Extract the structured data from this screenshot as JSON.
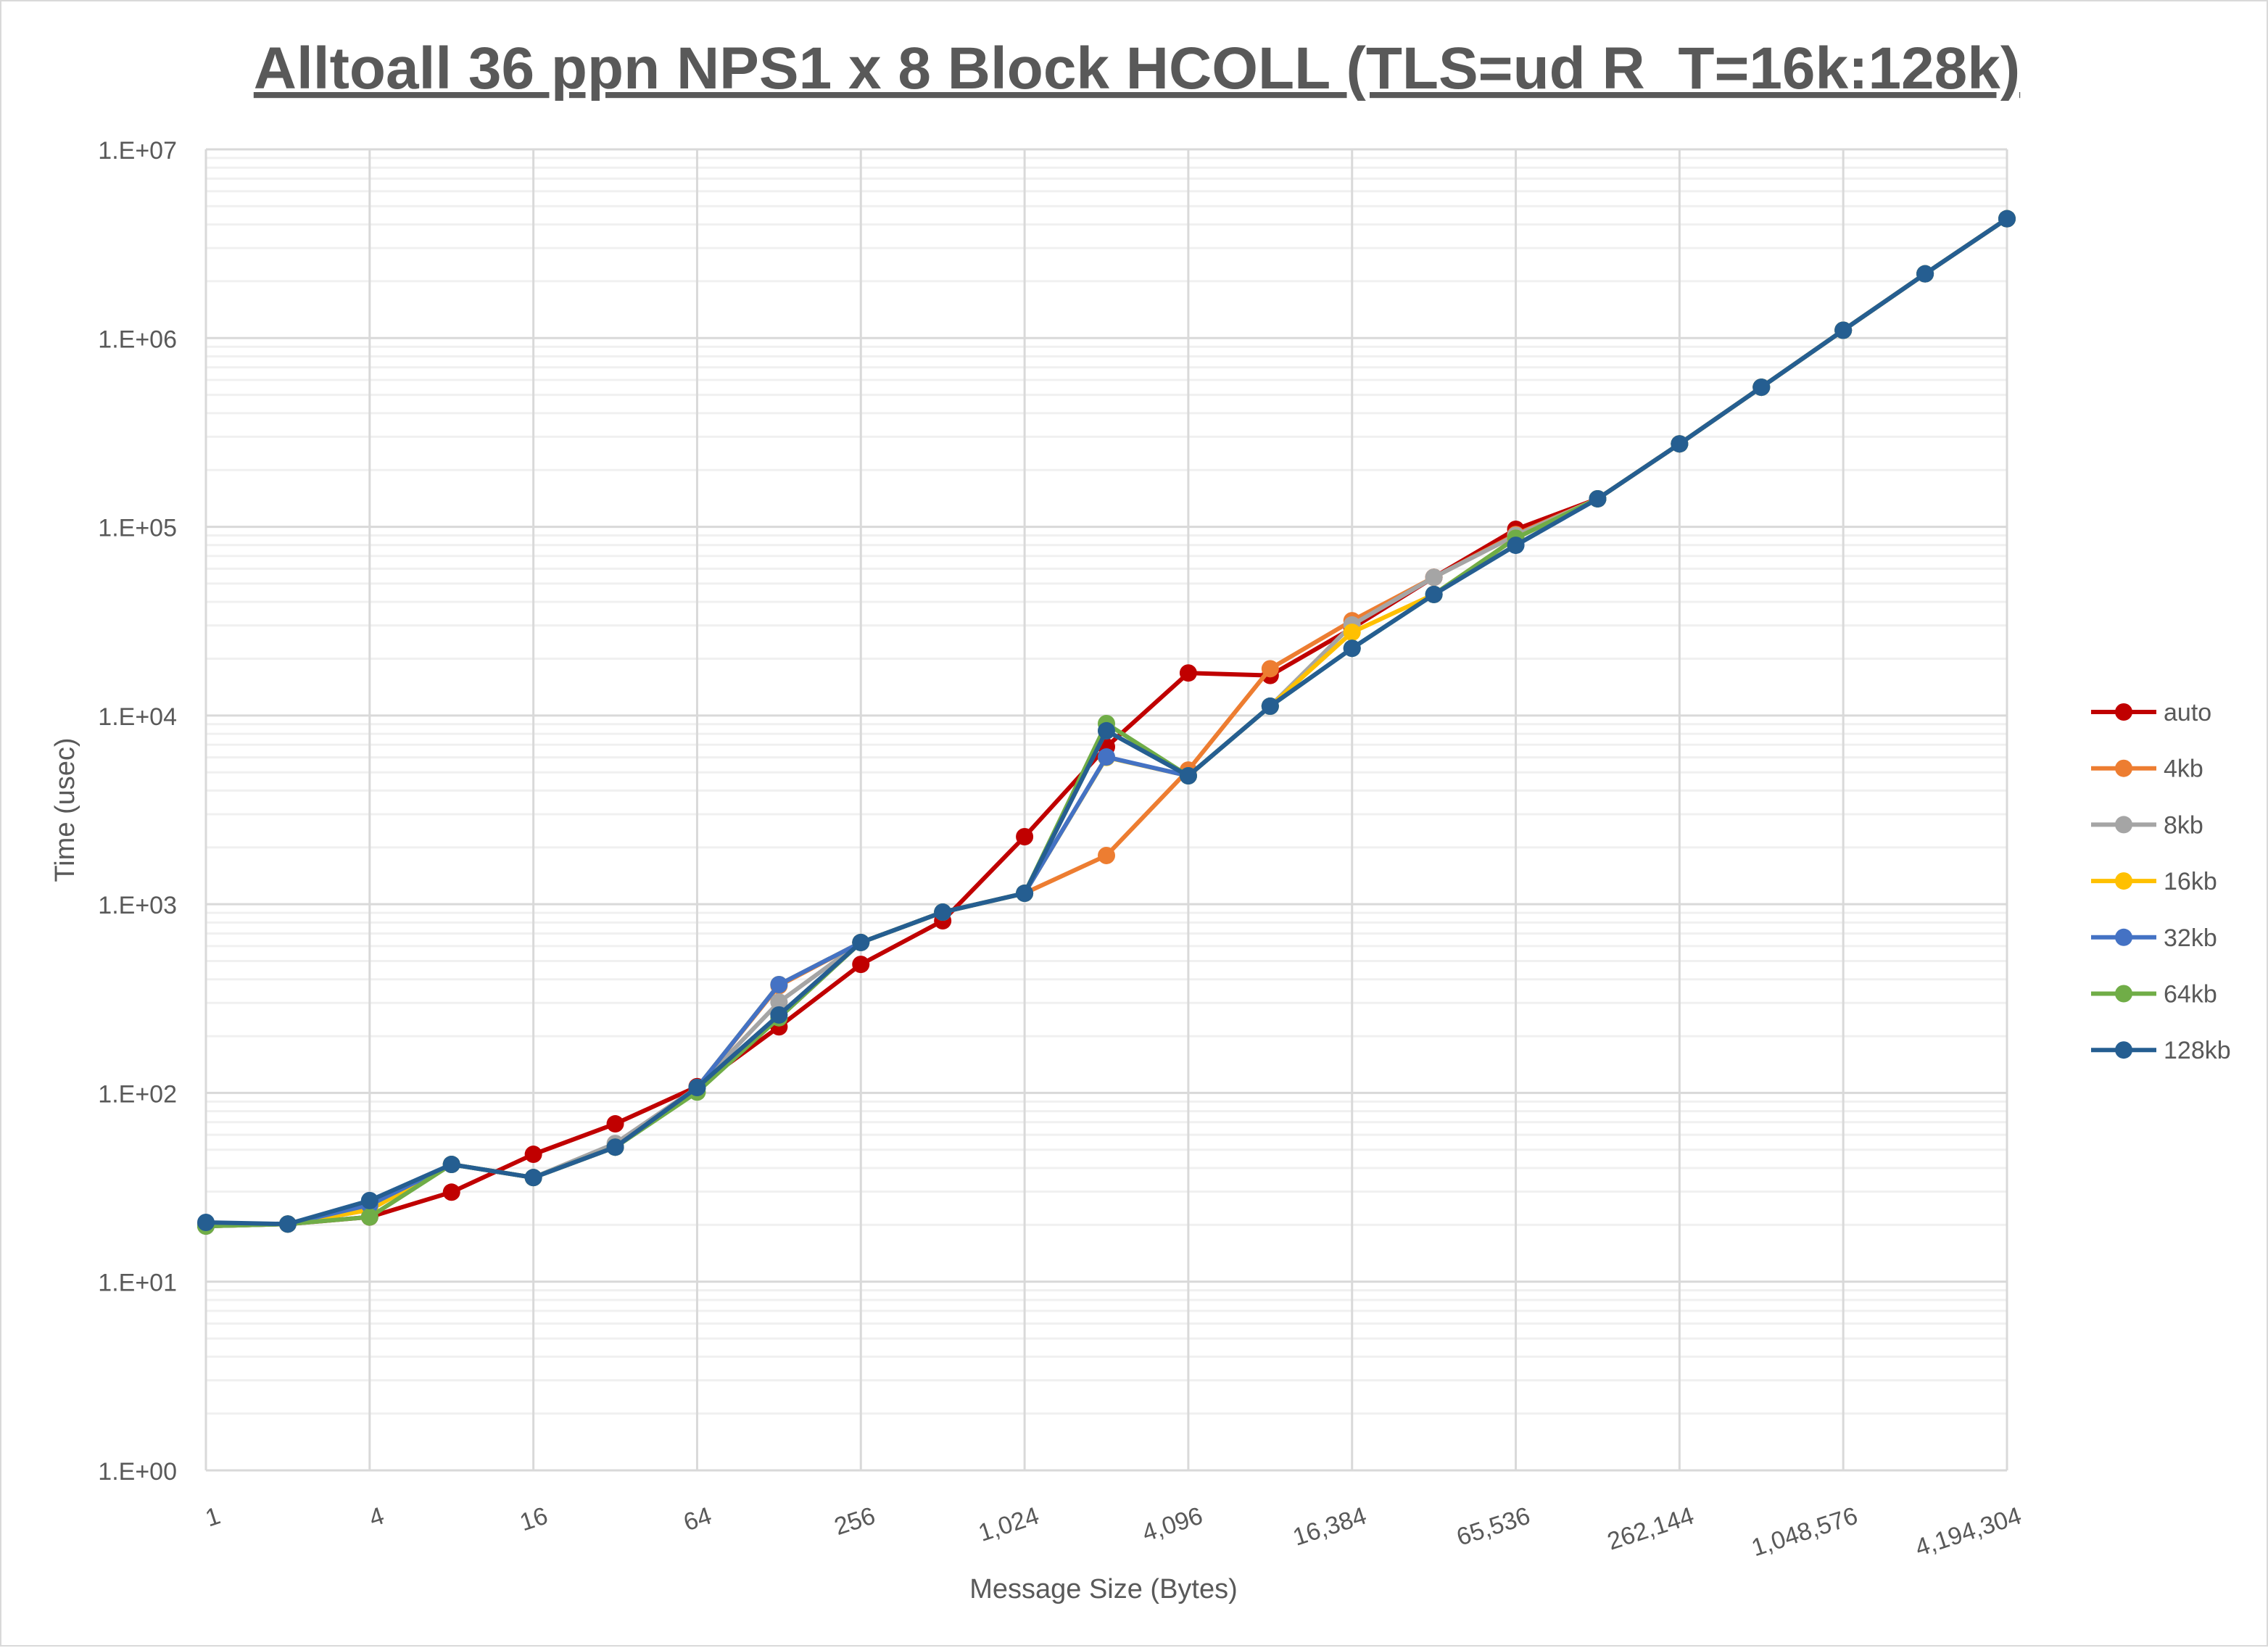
{
  "chart_data": {
    "type": "line",
    "title": "Alltoall 36 ppn NPS1 x 8 Block HCOLL (TLS=ud R_T=16k:128k)",
    "xlabel": "Message Size (Bytes)",
    "ylabel": "Time (usec)",
    "x_scale": "log2",
    "y_scale": "log10",
    "ylim": [
      1,
      10000000
    ],
    "y_tick_labels": [
      "1.E+00",
      "1.E+01",
      "1.E+02",
      "1.E+03",
      "1.E+04",
      "1.E+05",
      "1.E+06",
      "1.E+07"
    ],
    "x_tick_labels": [
      "1",
      "4",
      "16",
      "64",
      "256",
      "1,024",
      "4,096",
      "16,384",
      "65,536",
      "262,144",
      "1,048,576",
      "4,194,304"
    ],
    "grid": true,
    "legend_position": "right",
    "x": [
      1,
      2,
      4,
      8,
      16,
      32,
      64,
      128,
      256,
      512,
      1024,
      2048,
      4096,
      8192,
      16384,
      32768,
      65536,
      131072,
      262144,
      524288,
      1048576,
      2097152,
      4194304
    ],
    "series": [
      {
        "name": "auto",
        "color": "#C00000",
        "values": [
          20,
          20.2,
          22,
          29.8,
          47.3,
          68.6,
          108,
          224,
          480,
          817,
          2280,
          6820,
          16800,
          16300,
          29000,
          54000,
          97000,
          140700,
          275000,
          549000,
          1100000,
          2190000,
          4290000
        ]
      },
      {
        "name": "4kb",
        "color": "#ED7D31",
        "values": [
          19.7,
          20.2,
          24.8,
          41.8,
          35.6,
          51.6,
          106.8,
          370,
          627,
          908,
          1143,
          1812,
          5140,
          17700,
          31800,
          54000,
          91000,
          140700,
          275000,
          549000,
          1100000,
          2190000,
          4290000
        ]
      },
      {
        "name": "8kb",
        "color": "#A5A5A5",
        "values": [
          19.7,
          20.2,
          24,
          41.8,
          35.6,
          54,
          106.8,
          303,
          627,
          908,
          1143,
          8300,
          4790,
          11200,
          30200,
          54000,
          90000,
          140700,
          275000,
          549000,
          1100000,
          2190000,
          4290000
        ]
      },
      {
        "name": "16kb",
        "color": "#FFC000",
        "values": [
          19.7,
          20.2,
          24,
          41.8,
          35.6,
          51.6,
          106.8,
          375,
          627,
          908,
          1143,
          6000,
          4790,
          11200,
          27600,
          43800,
          87000,
          140700,
          275000,
          549000,
          1100000,
          2190000,
          4290000
        ]
      },
      {
        "name": "32kb",
        "color": "#4472C4",
        "values": [
          19.7,
          20.2,
          25.5,
          41.8,
          35.6,
          51.6,
          106.8,
          375,
          627,
          908,
          1143,
          6030,
          4790,
          11200,
          22700,
          43800,
          80000,
          140700,
          275000,
          549000,
          1100000,
          2190000,
          4290000
        ]
      },
      {
        "name": "64kb",
        "color": "#70AD47",
        "values": [
          19.7,
          20.2,
          22,
          41.8,
          35.6,
          51.6,
          101,
          250,
          627,
          908,
          1143,
          9060,
          4790,
          11200,
          22700,
          43800,
          87000,
          140700,
          275000,
          549000,
          1100000,
          2190000,
          4290000
        ]
      },
      {
        "name": "128kb",
        "color": "#255E91",
        "values": [
          20.6,
          20.2,
          26.9,
          41.8,
          35.6,
          51.6,
          106.8,
          259,
          627,
          908,
          1143,
          8300,
          4790,
          11200,
          22700,
          43800,
          79800,
          140700,
          275000,
          549000,
          1100000,
          2190000,
          4290000
        ]
      }
    ]
  }
}
